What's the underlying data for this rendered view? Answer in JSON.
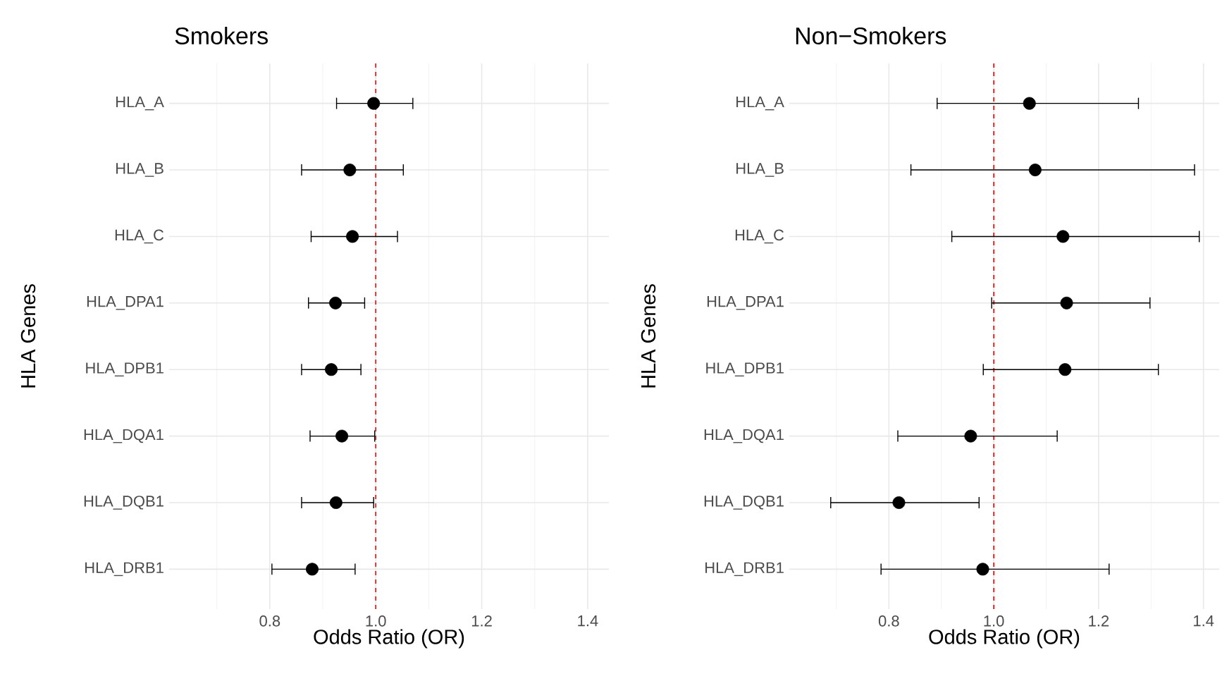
{
  "chart_data": [
    {
      "type": "scatter",
      "title": "Smokers",
      "xlabel": "Odds Ratio (OR)",
      "ylabel": "HLA Genes",
      "orientation": "horizontal",
      "categories": [
        "HLA_A",
        "HLA_B",
        "HLA_C",
        "HLA_DPA1",
        "HLA_DPB1",
        "HLA_DQA1",
        "HLA_DQB1",
        "HLA_DRB1"
      ],
      "series": [
        {
          "color": "#000000",
          "values": [
            0.996,
            0.951,
            0.956,
            0.924,
            0.916,
            0.936,
            0.925,
            0.88
          ],
          "errors": [
            [
              0.926,
              1.07
            ],
            [
              0.86,
              1.052
            ],
            [
              0.878,
              1.041
            ],
            [
              0.873,
              0.979
            ],
            [
              0.86,
              0.972
            ],
            [
              0.876,
              0.998
            ],
            [
              0.86,
              0.996
            ],
            [
              0.804,
              0.961
            ]
          ]
        }
      ],
      "xlim": [
        0.61,
        1.44
      ],
      "xticks": [
        0.8,
        {
          "value": 1.0,
          "label": "1.0"
        },
        1.2,
        1.4
      ],
      "ref_lines": [
        {
          "axis": "x",
          "value": 1.0,
          "color": "#ff0000",
          "line_style": "dashed"
        }
      ],
      "grid": true,
      "marker": "circle"
    },
    {
      "type": "scatter",
      "title": "Non−Smokers",
      "xlabel": "Odds Ratio (OR)",
      "ylabel": "HLA Genes",
      "orientation": "horizontal",
      "categories": [
        "HLA_A",
        "HLA_B",
        "HLA_C",
        "HLA_DPA1",
        "HLA_DPB1",
        "HLA_DQA1",
        "HLA_DQB1",
        "HLA_DRB1"
      ],
      "series": [
        {
          "color": "#000000",
          "values": [
            1.068,
            1.079,
            1.132,
            1.139,
            1.136,
            0.956,
            0.819,
            0.979
          ],
          "errors": [
            [
              0.892,
              1.276
            ],
            [
              0.842,
              1.383
            ],
            [
              0.92,
              1.392
            ],
            [
              0.996,
              1.298
            ],
            [
              0.98,
              1.314
            ],
            [
              0.817,
              1.121
            ],
            [
              0.689,
              0.972
            ],
            [
              0.785,
              1.22
            ]
          ]
        }
      ],
      "xlim": [
        0.61,
        1.43
      ],
      "xticks": [
        0.8,
        {
          "value": 1.0,
          "label": "1.0"
        },
        1.2,
        1.4
      ],
      "ref_lines": [
        {
          "axis": "x",
          "value": 1.0,
          "color": "#ff0000",
          "line_style": "dashed"
        }
      ],
      "grid": true,
      "marker": "circle"
    }
  ]
}
